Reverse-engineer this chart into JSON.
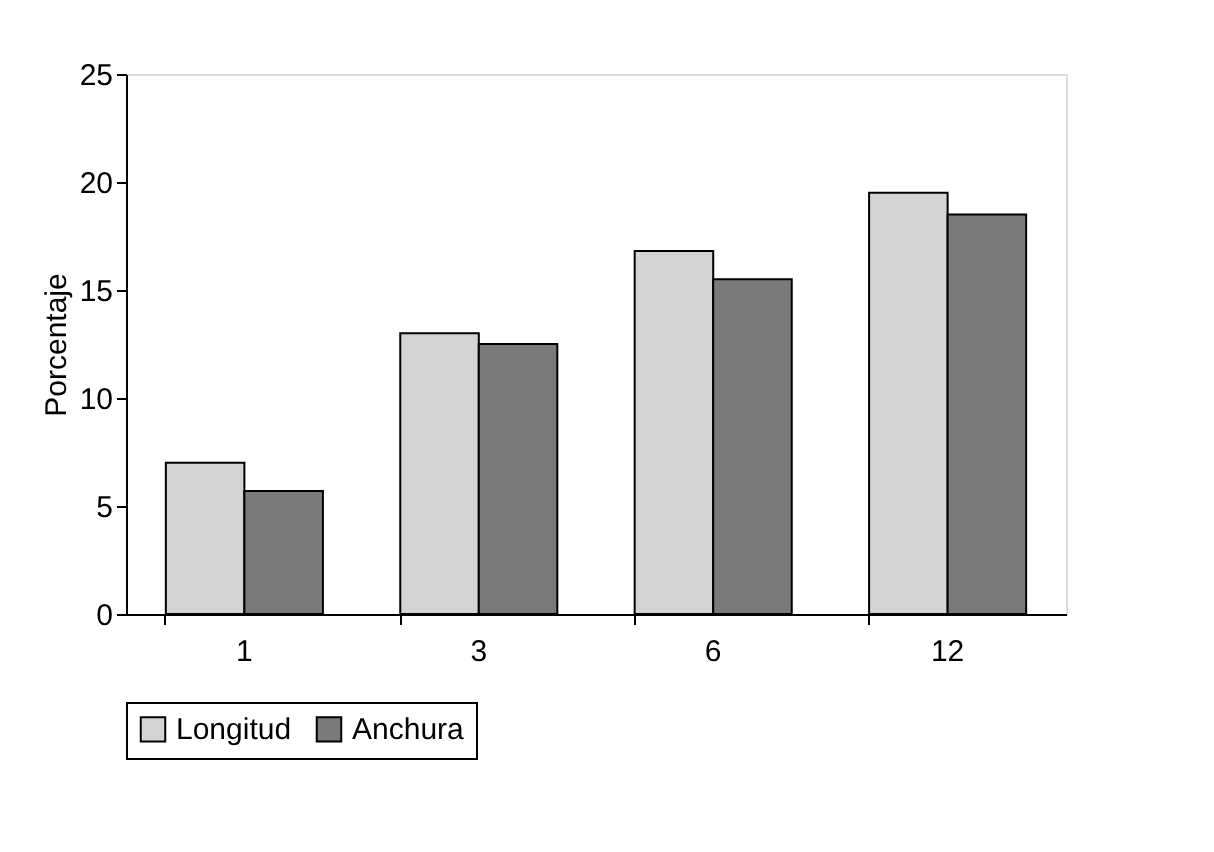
{
  "chart_data": {
    "type": "bar",
    "ylabel": "Porcentaje",
    "categories": [
      "1",
      "3",
      "6",
      "12"
    ],
    "series": [
      {
        "name": "Longitud",
        "color": "#d4d4d4",
        "values": [
          7.0,
          13.0,
          16.8,
          19.5
        ]
      },
      {
        "name": "Anchura",
        "color": "#7a7a7a",
        "values": [
          5.7,
          12.5,
          15.5,
          18.5
        ]
      }
    ],
    "ylim": [
      0,
      25
    ],
    "yticks": [
      0,
      5,
      10,
      15,
      20,
      25
    ],
    "grid": false,
    "legend": "bottom"
  }
}
